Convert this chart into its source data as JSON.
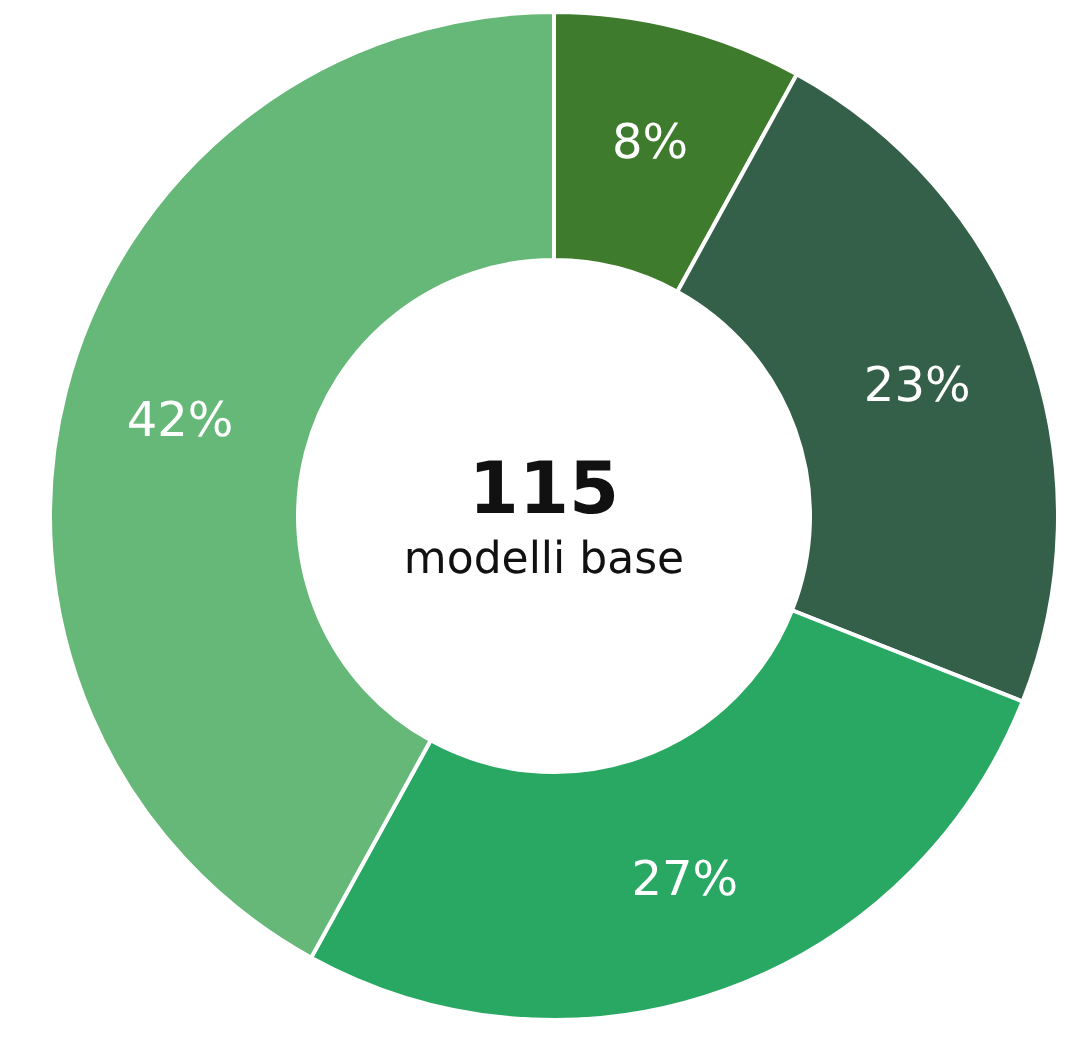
{
  "chart_data": {
    "type": "donut",
    "title": "115",
    "subtitle": "modelli base",
    "categories": [
      null,
      null,
      null,
      null
    ],
    "values": [
      8,
      23,
      27,
      42
    ],
    "colors": [
      "#3e7b2c",
      "#346049",
      "#28a863",
      "#66b878"
    ],
    "value_labels": [
      "8%",
      "23%",
      "27%",
      "42%"
    ]
  }
}
